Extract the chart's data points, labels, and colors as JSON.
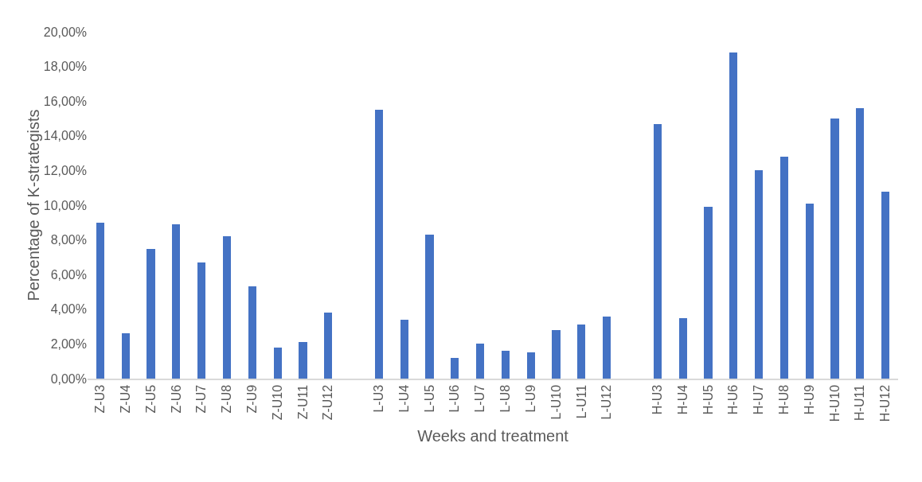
{
  "chart_data": {
    "type": "bar",
    "xlabel": "Weeks and treatment",
    "ylabel": "Percentage of K-strategists",
    "categories": [
      "Z-U3",
      "Z-U4",
      "Z-U5",
      "Z-U6",
      "Z-U7",
      "Z-U8",
      "Z-U9",
      "Z-U10",
      "Z-U11",
      "Z-U12",
      null,
      "L-U3",
      "L-U4",
      "L-U5",
      "L-U6",
      "L-U7",
      "L-U8",
      "L-U9",
      "L-U10",
      "L-U11",
      "L-U12",
      null,
      "H-U3",
      "H-U4",
      "H-U5",
      "H-U6",
      "H-U7",
      "H-U8",
      "H-U9",
      "H-U10",
      "H-U11",
      "H-U12"
    ],
    "values": [
      9.0,
      2.6,
      7.5,
      8.9,
      6.7,
      8.2,
      5.3,
      1.8,
      2.1,
      3.8,
      null,
      15.5,
      3.4,
      8.3,
      1.2,
      2.0,
      1.6,
      1.5,
      2.8,
      3.1,
      3.6,
      null,
      14.7,
      3.5,
      9.9,
      18.8,
      12.0,
      12.8,
      10.1,
      15.0,
      15.6,
      10.8
    ],
    "color": "#4472c4",
    "ylim": [
      0,
      20
    ],
    "yticks": [
      {
        "value": 0,
        "label": "0,00%"
      },
      {
        "value": 2,
        "label": "2,00%"
      },
      {
        "value": 4,
        "label": "4,00%"
      },
      {
        "value": 6,
        "label": "6,00%"
      },
      {
        "value": 8,
        "label": "8,00%"
      },
      {
        "value": 10,
        "label": "10,00%"
      },
      {
        "value": 12,
        "label": "12,00%"
      },
      {
        "value": 14,
        "label": "14,00%"
      },
      {
        "value": 16,
        "label": "16,00%"
      },
      {
        "value": 18,
        "label": "18,00%"
      },
      {
        "value": 20,
        "label": "20,00%"
      }
    ],
    "grid": false
  }
}
